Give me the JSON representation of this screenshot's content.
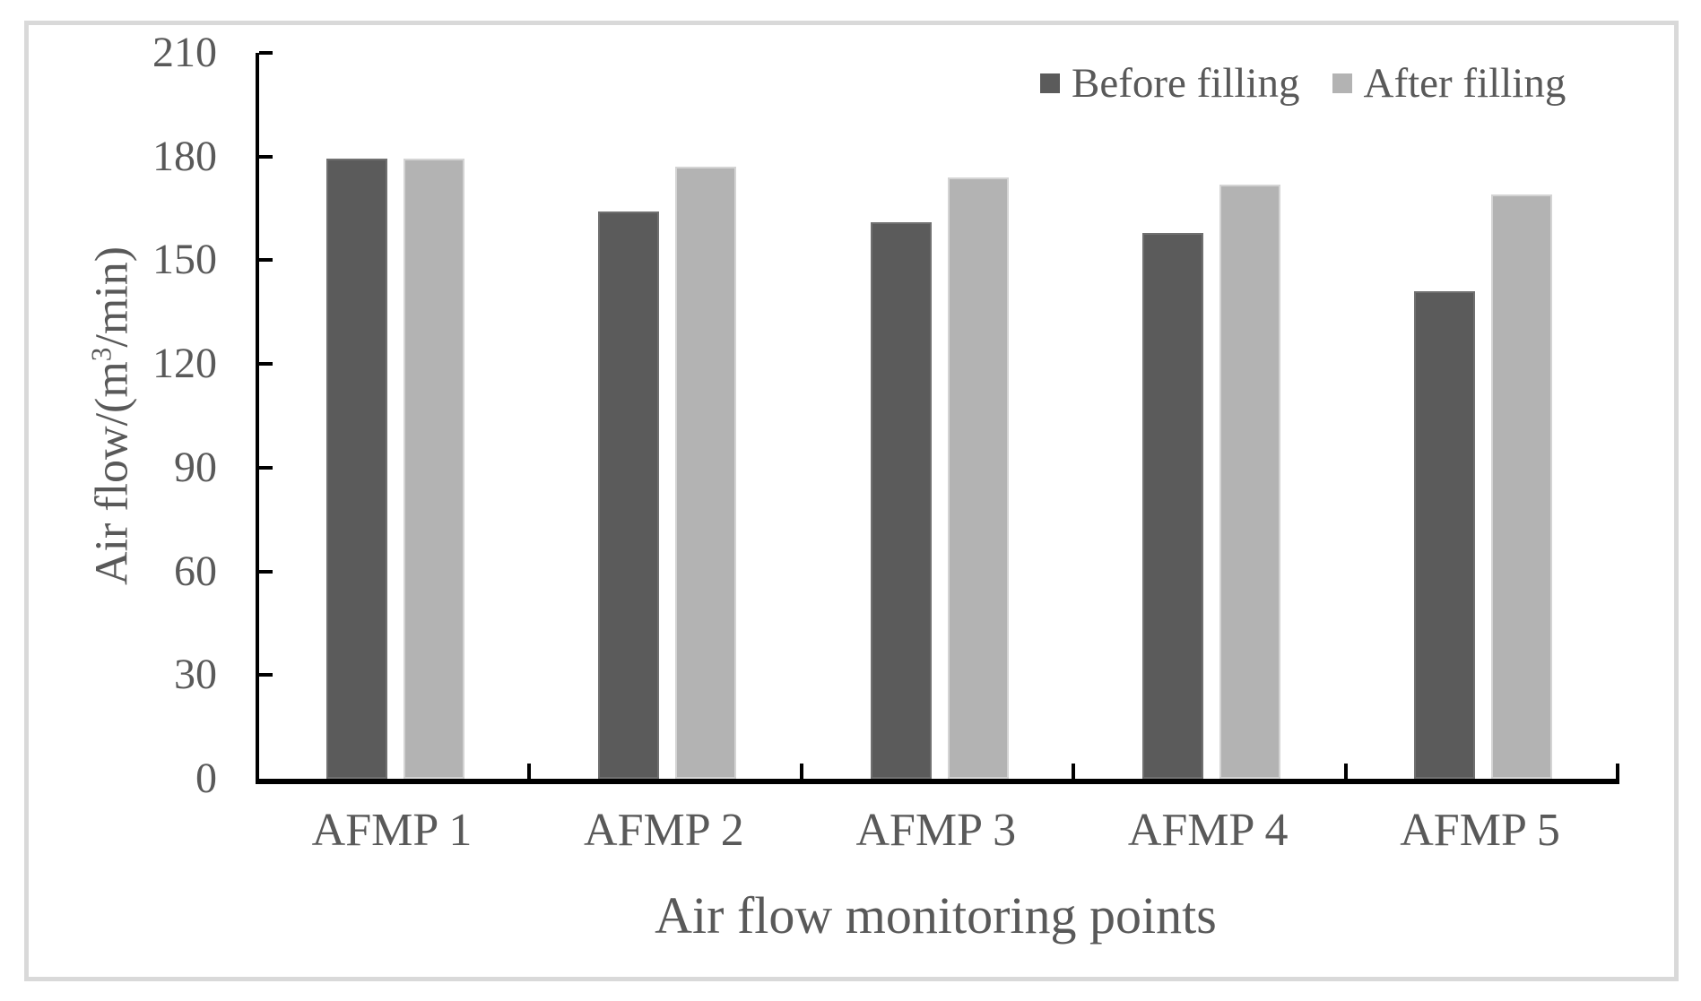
{
  "figure": {
    "border_color": "#d9d9d9",
    "background": "#ffffff",
    "axis_color": "#000000",
    "text_color": "#595959"
  },
  "chart_data": {
    "type": "bar",
    "title": "",
    "xlabel": "Air flow monitoring points",
    "ylabel": "Air flow/(m³/min)",
    "ylabel_parts": {
      "prefix": "Air flow/(m",
      "sup": "3",
      "suffix": "/min)"
    },
    "categories": [
      "AFMP 1",
      "AFMP 2",
      "AFMP 3",
      "AFMP 4",
      "AFMP 5"
    ],
    "series": [
      {
        "name": "Before filling",
        "color": "#5b5b5b",
        "values": [
          179.5,
          164,
          161,
          158,
          141
        ]
      },
      {
        "name": "After filling",
        "color": "#b3b3b3",
        "values": [
          179.5,
          177,
          174,
          172,
          169
        ]
      }
    ],
    "ylim": [
      0,
      210
    ],
    "yticks": [
      0,
      30,
      60,
      90,
      120,
      150,
      180,
      210
    ],
    "grid": false,
    "legend_position": "top-right"
  }
}
